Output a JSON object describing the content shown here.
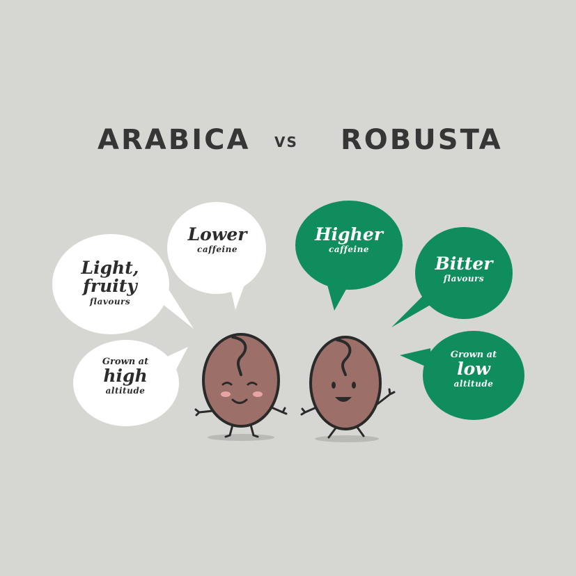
{
  "heading": {
    "left": "ARABICA",
    "vs": "VS",
    "right": "ROBUSTA"
  },
  "arabica": {
    "bubble_caffeine": {
      "main": "Lower",
      "sub": "caffeine"
    },
    "bubble_flavour": {
      "line1": "Light,",
      "line2": "fruity",
      "sub": "flavours"
    },
    "bubble_altitude": {
      "pre": "Grown at",
      "main": "high",
      "sub": "altitude"
    }
  },
  "robusta": {
    "bubble_caffeine": {
      "main": "Higher",
      "sub": "caffeine"
    },
    "bubble_flavour": {
      "main": "Bitter",
      "sub": "flavours"
    },
    "bubble_altitude": {
      "pre": "Grown at",
      "main": "low",
      "sub": "altitude"
    }
  },
  "colors": {
    "background": "#d6d7d3",
    "white_bubble": "#ffffff",
    "green_bubble": "#0f8d5c",
    "bean": "#9c7068",
    "outline": "#2a2a2a",
    "text_dark": "#363636"
  },
  "icons": [
    "speech-bubble-icon",
    "coffee-bean-character-icon"
  ]
}
